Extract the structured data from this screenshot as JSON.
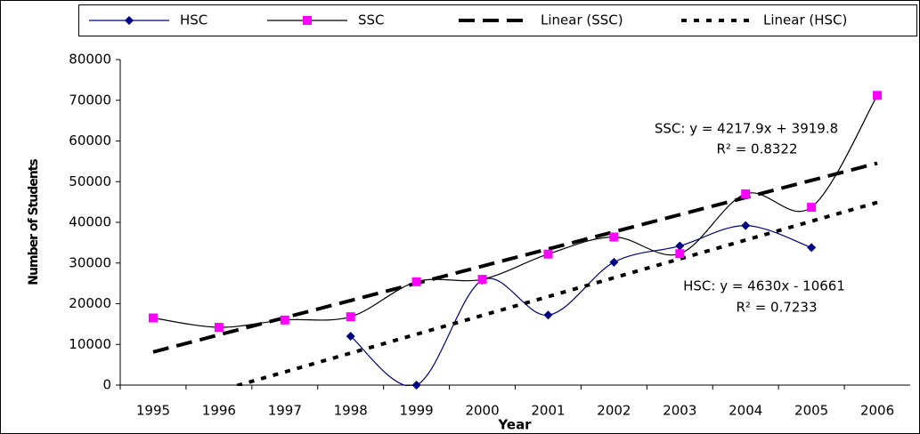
{
  "chart_data": {
    "type": "line",
    "categories": [
      "1995",
      "1996",
      "1997",
      "1998",
      "1999",
      "2000",
      "2001",
      "2002",
      "2003",
      "2004",
      "2005",
      "2006"
    ],
    "series": [
      {
        "name": "HSC",
        "color": "#000080",
        "marker_color": "#000080",
        "marker": "diamond",
        "style": "smooth",
        "values": [
          null,
          null,
          null,
          12000,
          0,
          25800,
          17200,
          30200,
          34200,
          39200,
          33800,
          null
        ]
      },
      {
        "name": "SSC",
        "color": "#000000",
        "marker_color": "#ff00ff",
        "marker": "square",
        "style": "smooth",
        "values": [
          16500,
          14200,
          16000,
          16800,
          25400,
          26000,
          32200,
          36400,
          32300,
          47000,
          43700,
          71200
        ]
      },
      {
        "name": "Linear (SSC)",
        "color": "#000000",
        "style": "dash",
        "values": [
          8138,
          12356,
          16574,
          20791,
          25009,
          29227,
          33445,
          37663,
          41881,
          46099,
          50317,
          54535
        ]
      },
      {
        "name": "Linear (HSC)",
        "color": "#000000",
        "style": "dot",
        "values": [
          -6031,
          -1401,
          3229,
          7859,
          12489,
          17119,
          21749,
          26379,
          31009,
          35639,
          40269,
          44899
        ]
      }
    ],
    "ylim": [
      0,
      80000
    ],
    "yticks": [
      0,
      10000,
      20000,
      30000,
      40000,
      50000,
      60000,
      70000,
      80000
    ],
    "x_label": "Year",
    "y_label": "Number of Students",
    "annotations": [
      "SSC: y = 4217.9x + 3919.8",
      "R² = 0.8322",
      "HSC: y = 4630x - 10661",
      "R² = 0.7233"
    ],
    "grid": false
  }
}
